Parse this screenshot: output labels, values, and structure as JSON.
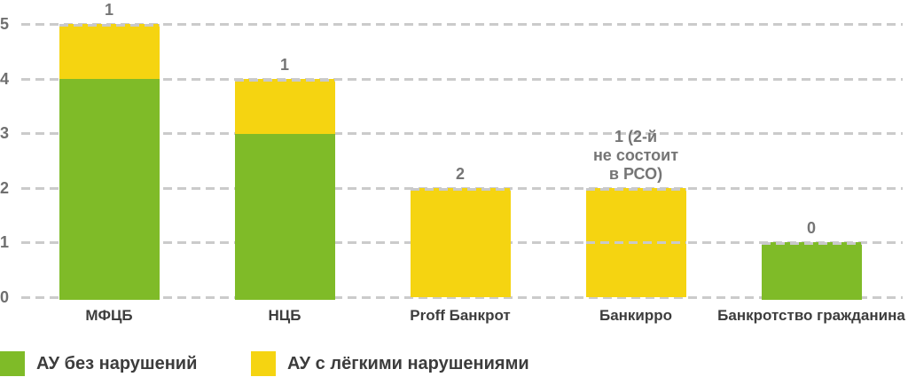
{
  "chart_data": {
    "type": "bar",
    "stacked": true,
    "title": "",
    "categories": [
      "МФЦБ",
      "НЦБ",
      "Proff Банкрот",
      "Банкирро",
      "Банкротство гражданина"
    ],
    "series": [
      {
        "name": "АУ без нарушений",
        "color": "#7fbb28",
        "values": [
          4,
          3,
          0,
          0,
          1
        ]
      },
      {
        "name": "АУ с лёгкими нарушениями",
        "color": "#f5d411",
        "values": [
          1,
          1,
          2,
          2,
          0
        ]
      }
    ],
    "bar_labels": [
      [
        "1"
      ],
      [
        "1"
      ],
      [
        "2"
      ],
      [
        "1 (2-й",
        "не состоит",
        "в РСО)"
      ],
      [
        "0"
      ]
    ],
    "yticks": [
      0,
      1,
      2,
      3,
      4,
      5
    ],
    "ylim": [
      0,
      5
    ],
    "grid": "horizontal-dashed",
    "dividers": [
      {
        "category_index": 3,
        "at_value": 1
      }
    ],
    "legend_position": "bottom-left"
  },
  "colors": {
    "background": "#ffffff",
    "grid": "#cbcbcb",
    "tick_label": "#6f6f6f",
    "value_label": "#757575",
    "category_label": "#3d3d3d",
    "legend_label": "#3c3c3c"
  }
}
